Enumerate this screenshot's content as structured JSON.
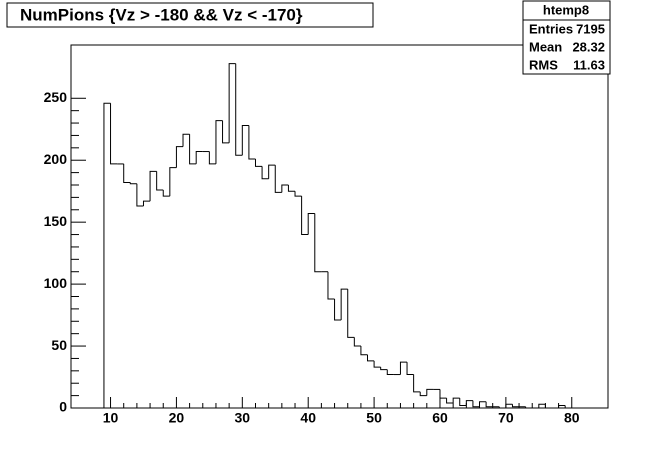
{
  "chart_data": {
    "type": "histogram",
    "title": "NumPions  {Vz > -180 && Vz < -170}",
    "stats": {
      "name": "htemp8",
      "rows": [
        {
          "label": "Entries",
          "value": 7195
        },
        {
          "label": "Mean",
          "value": 28.32
        },
        {
          "label": "RMS",
          "value": 11.63
        }
      ]
    },
    "bins": [
      9,
      10,
      11,
      12,
      13,
      14,
      15,
      16,
      17,
      18,
      19,
      20,
      21,
      22,
      23,
      24,
      25,
      26,
      27,
      28,
      29,
      30,
      31,
      32,
      33,
      34,
      35,
      36,
      37,
      38,
      39,
      40,
      41,
      42,
      43,
      44,
      45,
      46,
      47,
      48,
      49,
      50,
      51,
      52,
      53,
      54,
      55,
      56,
      57,
      58,
      59,
      60,
      61,
      62,
      63,
      64,
      65,
      66,
      67,
      68,
      69,
      70,
      71,
      72,
      73,
      74,
      75,
      76,
      77,
      78,
      79,
      80,
      81,
      82,
      83,
      84,
      85
    ],
    "values": [
      246,
      197,
      197,
      182,
      181,
      163,
      167,
      191,
      176,
      171,
      194,
      211,
      221,
      197,
      207,
      207,
      197,
      232,
      214,
      278,
      204,
      228,
      201,
      195,
      185,
      196,
      174,
      180,
      175,
      171,
      140,
      157,
      110,
      110,
      88,
      71,
      96,
      57,
      50,
      43,
      38,
      33,
      31,
      27,
      27,
      37,
      27,
      13,
      10,
      15,
      15,
      8,
      4,
      8,
      2,
      6,
      1,
      5,
      1,
      1,
      0,
      3,
      1,
      1,
      0,
      0,
      3,
      0,
      0,
      2,
      0,
      0,
      0,
      0,
      0,
      0
    ],
    "color": "#000000",
    "xlim": [
      4,
      85.5
    ],
    "xticks": [
      10,
      20,
      30,
      40,
      50,
      60,
      70,
      80
    ],
    "ylim": [
      0,
      293
    ],
    "yticks": [
      0,
      50,
      100,
      150,
      200,
      250
    ]
  }
}
